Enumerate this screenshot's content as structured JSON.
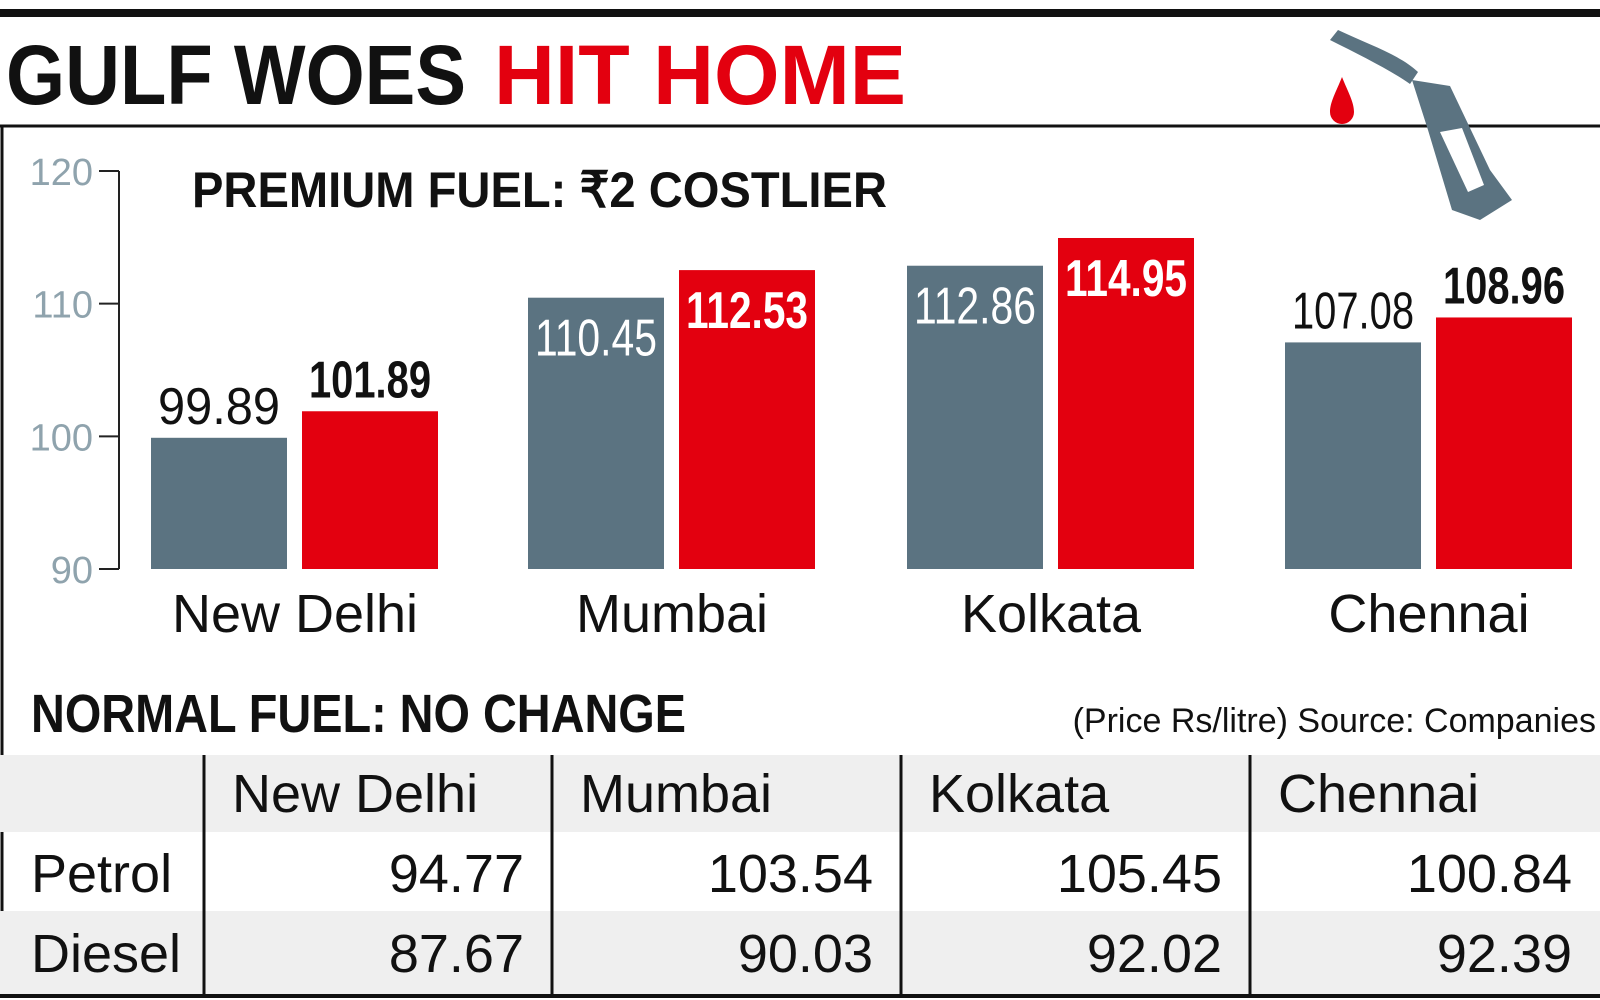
{
  "header": {
    "title": "GULF WOES",
    "title_highlight": "HIT HOME"
  },
  "chart_data": {
    "type": "bar",
    "title": "PREMIUM FUEL: ₹2 COSTLIER",
    "categories": [
      "New Delhi",
      "Mumbai",
      "Kolkata",
      "Chennai"
    ],
    "series": [
      {
        "color": "#5b7381",
        "values": [
          99.89,
          110.45,
          112.86,
          107.08
        ]
      },
      {
        "color": "#e3000f",
        "values": [
          101.89,
          112.53,
          114.95,
          108.96
        ]
      }
    ],
    "ylim": [
      90,
      120
    ],
    "yticks": [
      90,
      100,
      110,
      120
    ]
  },
  "table": {
    "caption": "NORMAL FUEL: NO CHANGE",
    "note": "(Price Rs/litre) Source: Companies",
    "header": [
      "New Delhi",
      "Mumbai",
      "Kolkata",
      "Chennai"
    ],
    "rows": [
      [
        "Petrol",
        94.77,
        103.54,
        105.45,
        100.84
      ],
      [
        "Diesel",
        87.67,
        90.03,
        92.02,
        92.39
      ]
    ]
  }
}
